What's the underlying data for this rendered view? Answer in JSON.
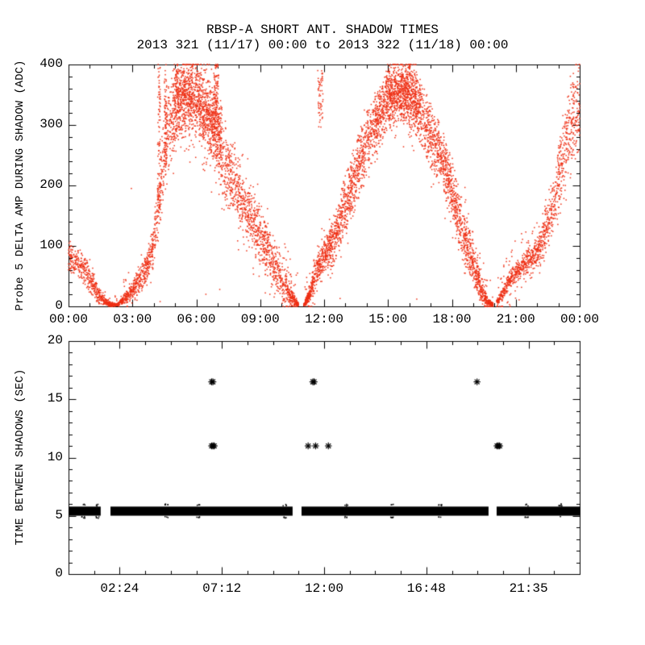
{
  "title": {
    "line1": "RBSP-A SHORT ANT. SHADOW TIMES",
    "line2": "2013 321 (11/17) 00:00 to 2013 322 (11/18) 00:00"
  },
  "colors": {
    "background": "#ffffff",
    "axis": "#000000",
    "top_scatter": "#ee2f14",
    "bottom_marker": "#000000"
  },
  "chart_data": [
    {
      "type": "scatter",
      "panel": "top",
      "ylabel": "Probe 5 DELTA AMP DURING SHADOW (ADC)",
      "xlabel": "",
      "xlim_hours": [
        0,
        24
      ],
      "ylim": [
        0,
        400
      ],
      "x_major_tick_labels": [
        "00:00",
        "03:00",
        "06:00",
        "09:00",
        "12:00",
        "15:00",
        "18:00",
        "21:00",
        "00:00"
      ],
      "x_major_tick_hours": [
        0,
        3,
        6,
        9,
        12,
        15,
        18,
        21,
        24
      ],
      "x_minor_step_hours": 1,
      "y_major_ticks": [
        0,
        100,
        200,
        300,
        400
      ],
      "y_minor_step": 20,
      "grid": "off",
      "point_color": "#ee2f14",
      "description": "Dense red dot scatter: diurnal shadow-amplitude curve with peaks near 06:00 and 15:30 reaching 400 ADC (clipped), zero valleys near 02:00, 10:45 and 20:00, rising again to 400 at 24:00",
      "bands": [
        {
          "name": "midnight-descent",
          "n": 550,
          "halo": {
            "frac": 0.1,
            "spread": 18
          },
          "points": [
            [
              0.0,
              55,
              118
            ],
            [
              0.4,
              45,
              100
            ],
            [
              0.8,
              32,
              82
            ],
            [
              1.2,
              12,
              55
            ],
            [
              1.5,
              2,
              28
            ],
            [
              1.9,
              0,
              8
            ],
            [
              2.3,
              0,
              4
            ]
          ]
        },
        {
          "name": "rise-1",
          "n": 750,
          "halo": {
            "frac": 0.12,
            "spread": 30
          },
          "points": [
            [
              2.3,
              0,
              6
            ],
            [
              2.8,
              6,
              30
            ],
            [
              3.2,
              18,
              55
            ],
            [
              3.6,
              35,
              85
            ],
            [
              3.9,
              55,
              120
            ],
            [
              4.15,
              90,
              190
            ],
            [
              4.4,
              150,
              300
            ],
            [
              4.65,
              210,
              360
            ],
            [
              4.9,
              255,
              388
            ]
          ]
        },
        {
          "name": "peak-1",
          "n": 1400,
          "halo": {
            "frac": 0.25,
            "spread": 70
          },
          "points": [
            [
              4.9,
              255,
              392
            ],
            [
              5.3,
              285,
              401
            ],
            [
              5.7,
              295,
              402
            ],
            [
              6.1,
              285,
              392
            ],
            [
              6.5,
              260,
              378
            ],
            [
              6.9,
              235,
              358
            ],
            [
              7.2,
              205,
              332
            ]
          ]
        },
        {
          "name": "descent-1",
          "n": 1100,
          "halo": {
            "frac": 0.18,
            "spread": 55
          },
          "points": [
            [
              7.2,
              180,
              312
            ],
            [
              7.7,
              150,
              276
            ],
            [
              8.2,
              115,
              226
            ],
            [
              8.7,
              85,
              190
            ],
            [
              9.2,
              55,
              150
            ],
            [
              9.7,
              28,
              110
            ],
            [
              10.1,
              8,
              70
            ],
            [
              10.45,
              0,
              30
            ],
            [
              10.8,
              0,
              6
            ]
          ]
        },
        {
          "name": "rise-2",
          "n": 1500,
          "halo": {
            "frac": 0.12,
            "spread": 40
          },
          "points": [
            [
              11.05,
              0,
              5
            ],
            [
              11.3,
              4,
              30
            ],
            [
              11.5,
              18,
              70
            ],
            [
              11.65,
              35,
              85
            ],
            [
              11.85,
              50,
              95
            ],
            [
              12.1,
              58,
              115
            ],
            [
              12.5,
              75,
              155
            ],
            [
              12.9,
              105,
              205
            ],
            [
              13.3,
              145,
              250
            ],
            [
              13.7,
              185,
              295
            ],
            [
              14.1,
              220,
              330
            ],
            [
              14.5,
              255,
              362
            ],
            [
              14.9,
              285,
              392
            ]
          ]
        },
        {
          "name": "peak-2",
          "n": 1000,
          "halo": {
            "frac": 0.2,
            "spread": 55
          },
          "points": [
            [
              14.9,
              285,
              396
            ],
            [
              15.3,
              305,
              402
            ],
            [
              15.7,
              310,
              402
            ],
            [
              16.1,
              295,
              396
            ],
            [
              16.5,
              275,
              382
            ]
          ]
        },
        {
          "name": "descent-2",
          "n": 1300,
          "halo": {
            "frac": 0.15,
            "spread": 45
          },
          "points": [
            [
              16.5,
              270,
              376
            ],
            [
              16.9,
              240,
              346
            ],
            [
              17.3,
              210,
              312
            ],
            [
              17.55,
              195,
              292
            ],
            [
              17.8,
              165,
              266
            ],
            [
              18.2,
              115,
              216
            ],
            [
              18.6,
              70,
              160
            ],
            [
              19.0,
              35,
              105
            ],
            [
              19.35,
              8,
              55
            ],
            [
              19.65,
              0,
              15
            ],
            [
              19.95,
              0,
              5
            ]
          ]
        },
        {
          "name": "final-rise",
          "n": 1100,
          "halo": {
            "frac": 0.15,
            "spread": 45
          },
          "points": [
            [
              20.1,
              0,
              10
            ],
            [
              20.4,
              10,
              35
            ],
            [
              20.7,
              28,
              58
            ],
            [
              21.0,
              40,
              72
            ],
            [
              21.4,
              52,
              88
            ],
            [
              21.8,
              62,
              105
            ],
            [
              22.2,
              75,
              130
            ],
            [
              22.5,
              95,
              170
            ],
            [
              22.8,
              120,
              220
            ],
            [
              23.1,
              155,
              290
            ],
            [
              23.4,
              195,
              360
            ],
            [
              23.7,
              225,
              398
            ],
            [
              24.0,
              240,
              402
            ]
          ]
        }
      ],
      "streaks": [
        {
          "t0": 4.18,
          "t1": 4.32,
          "lo": 160,
          "hi": 402,
          "n": 90
        },
        {
          "t0": 4.5,
          "t1": 4.62,
          "lo": 230,
          "hi": 402,
          "n": 70
        },
        {
          "t0": 5.05,
          "t1": 5.15,
          "lo": 340,
          "hi": 402,
          "n": 30
        },
        {
          "t0": 6.82,
          "t1": 7.05,
          "lo": 280,
          "hi": 402,
          "n": 110
        },
        {
          "t0": 11.7,
          "t1": 11.95,
          "lo": 295,
          "hi": 390,
          "n": 55
        }
      ],
      "stray_points": [
        [
          4.3,
          8
        ],
        [
          6.45,
          20
        ],
        [
          9.85,
          25
        ],
        [
          12.75,
          13
        ],
        [
          16.35,
          12
        ],
        [
          7.1,
          28
        ],
        [
          2.95,
          195
        ],
        [
          13.1,
          136
        ],
        [
          20.6,
          6
        ]
      ]
    },
    {
      "type": "scatter",
      "panel": "bottom",
      "ylabel": "TIME BETWEEN SHADOWS (SEC)",
      "xlabel": "",
      "xlim_hours": [
        0,
        24
      ],
      "ylim": [
        0,
        20
      ],
      "x_major_tick_labels": [
        "02:24",
        "07:12",
        "12:00",
        "16:48",
        "21:35"
      ],
      "x_major_tick_hours": [
        2.4,
        7.2,
        12.0,
        16.8,
        21.6
      ],
      "x_minor_step_hours": 1.2,
      "y_major_ticks": [
        0,
        5,
        10,
        15,
        20
      ],
      "y_minor_step": 1,
      "grid": "off",
      "marker": "asterisk",
      "marker_color": "#000000",
      "band_value_sec": 5.4,
      "band_halfwidth_sec": 0.39,
      "band_segments_hours": [
        [
          0,
          1.51
        ],
        [
          1.97,
          10.52
        ],
        [
          10.94,
          19.72
        ],
        [
          20.1,
          24
        ]
      ],
      "band_noise_hours": [
        0.7,
        1.35,
        4.6,
        6.1,
        10.15,
        13.05,
        15.2,
        17.45,
        21.5,
        23.1
      ],
      "asterisk_points_hour_sec": [
        [
          6.72,
          16.5
        ],
        [
          6.78,
          16.5
        ],
        [
          11.47,
          16.5
        ],
        [
          11.53,
          16.5
        ],
        [
          19.18,
          16.5
        ],
        [
          6.72,
          11.0
        ],
        [
          6.78,
          11.0
        ],
        [
          6.84,
          11.0
        ],
        [
          11.25,
          11.0
        ],
        [
          11.6,
          11.0
        ],
        [
          12.2,
          11.0
        ],
        [
          20.12,
          11.0
        ],
        [
          20.18,
          11.0
        ],
        [
          20.24,
          11.0
        ]
      ]
    }
  ]
}
